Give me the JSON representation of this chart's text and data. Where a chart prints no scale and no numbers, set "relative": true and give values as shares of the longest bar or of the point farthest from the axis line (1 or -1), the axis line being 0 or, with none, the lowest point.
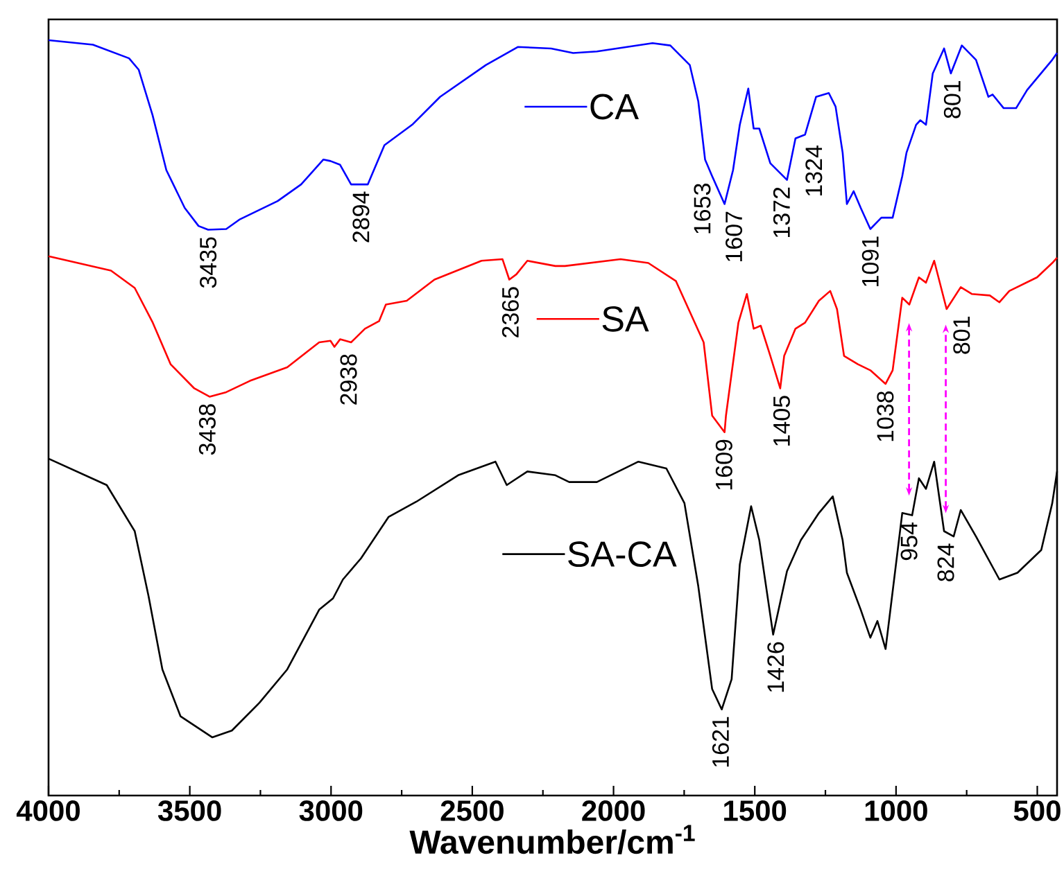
{
  "chart_data": {
    "type": "line",
    "relative": true,
    "xlabel": "Wavenumber/cm$^{-1}$",
    "xlim": [
      4000,
      430
    ],
    "xticks": [
      4000,
      {
        "value": 3750,
        "label": null
      },
      3500,
      {
        "value": 3250,
        "label": null
      },
      3000,
      {
        "value": 2750,
        "label": null
      },
      2500,
      {
        "value": 2250,
        "label": null
      },
      2000,
      {
        "value": 1750,
        "label": null
      },
      1500,
      {
        "value": 1250,
        "label": null
      },
      1000,
      {
        "value": 750,
        "label": null
      },
      500
    ],
    "tick_labels": "x",
    "legend": "center",
    "series": [
      {
        "name": "CA",
        "color": "#0000ff",
        "x": [
          4000,
          3843,
          3715,
          3681,
          3632,
          3583,
          3518,
          3469,
          3435,
          3371,
          3322,
          3189,
          3106,
          3027,
          3002,
          2968,
          2929,
          2904,
          2870,
          2811,
          2713,
          2614,
          2452,
          2339,
          2221,
          2143,
          2059,
          1862,
          1799,
          1730,
          1700,
          1676,
          1651,
          1607,
          1577,
          1553,
          1523,
          1504,
          1484,
          1445,
          1386,
          1356,
          1322,
          1283,
          1238,
          1214,
          1189,
          1174,
          1150,
          1125,
          1091,
          1052,
          1012,
          978,
          963,
          929,
          914,
          894,
          870,
          830,
          806,
          767,
          717,
          673,
          658,
          619,
          575,
          536,
          447,
          430
        ],
        "values": [
          1.0,
          0.994,
          0.976,
          0.961,
          0.901,
          0.828,
          0.778,
          0.754,
          0.749,
          0.75,
          0.763,
          0.787,
          0.809,
          0.842,
          0.84,
          0.835,
          0.809,
          0.809,
          0.809,
          0.861,
          0.888,
          0.925,
          0.967,
          0.991,
          0.989,
          0.983,
          0.985,
          0.996,
          0.993,
          0.967,
          0.919,
          0.842,
          0.82,
          0.783,
          0.828,
          0.888,
          0.936,
          0.883,
          0.883,
          0.837,
          0.815,
          0.87,
          0.875,
          0.925,
          0.93,
          0.912,
          0.851,
          0.783,
          0.8,
          0.778,
          0.75,
          0.765,
          0.765,
          0.82,
          0.851,
          0.888,
          0.894,
          0.888,
          0.956,
          0.989,
          0.956,
          0.993,
          0.974,
          0.925,
          0.928,
          0.91,
          0.91,
          0.934,
          0.974,
          0.983
        ]
      },
      {
        "name": "SA",
        "color": "#ff0000",
        "x": [
          4000,
          3779,
          3695,
          3631,
          3568,
          3484,
          3430,
          3371,
          3287,
          3155,
          3042,
          3002,
          2988,
          2968,
          2929,
          2880,
          2830,
          2806,
          2732,
          2634,
          2467,
          2393,
          2369,
          2344,
          2305,
          2206,
          2172,
          1975,
          1877,
          1779,
          1681,
          1651,
          1607,
          1602,
          1558,
          1528,
          1504,
          1479,
          1445,
          1410,
          1396,
          1356,
          1322,
          1273,
          1233,
          1209,
          1184,
          1135,
          1091,
          1037,
          1012,
          978,
          953,
          919,
          894,
          865,
          821,
          771,
          732,
          668,
          634,
          599,
          501,
          447,
          430
        ],
        "values": [
          0.714,
          0.695,
          0.672,
          0.626,
          0.571,
          0.539,
          0.528,
          0.534,
          0.549,
          0.567,
          0.6,
          0.602,
          0.594,
          0.604,
          0.6,
          0.618,
          0.628,
          0.65,
          0.655,
          0.683,
          0.708,
          0.71,
          0.683,
          0.69,
          0.708,
          0.701,
          0.701,
          0.71,
          0.705,
          0.681,
          0.6,
          0.503,
          0.481,
          0.503,
          0.626,
          0.664,
          0.618,
          0.622,
          0.582,
          0.539,
          0.582,
          0.618,
          0.626,
          0.655,
          0.668,
          0.644,
          0.582,
          0.571,
          0.563,
          0.545,
          0.563,
          0.659,
          0.65,
          0.686,
          0.679,
          0.708,
          0.644,
          0.673,
          0.664,
          0.662,
          0.653,
          0.668,
          0.686,
          0.705,
          0.712
        ]
      },
      {
        "name": "SA-CA",
        "color": "#000000",
        "x": [
          4000,
          3794,
          3695,
          3646,
          3597,
          3533,
          3420,
          3351,
          3253,
          3155,
          3042,
          2993,
          2958,
          2894,
          2796,
          2698,
          2550,
          2418,
          2378,
          2354,
          2305,
          2206,
          2157,
          2059,
          1912,
          1813,
          1749,
          1700,
          1651,
          1617,
          1582,
          1553,
          1513,
          1484,
          1435,
          1386,
          1337,
          1273,
          1224,
          1189,
          1174,
          1125,
          1091,
          1066,
          1037,
          978,
          943,
          919,
          894,
          865,
          830,
          796,
          771,
          717,
          634,
          570,
          486,
          447,
          430
        ],
        "values": [
          0.446,
          0.411,
          0.35,
          0.264,
          0.167,
          0.105,
          0.077,
          0.086,
          0.123,
          0.167,
          0.246,
          0.261,
          0.286,
          0.314,
          0.369,
          0.389,
          0.424,
          0.442,
          0.411,
          0.417,
          0.429,
          0.424,
          0.415,
          0.415,
          0.442,
          0.433,
          0.387,
          0.277,
          0.141,
          0.114,
          0.154,
          0.306,
          0.383,
          0.338,
          0.213,
          0.297,
          0.338,
          0.374,
          0.396,
          0.338,
          0.295,
          0.246,
          0.209,
          0.231,
          0.194,
          0.374,
          0.371,
          0.42,
          0.406,
          0.442,
          0.35,
          0.343,
          0.378,
          0.343,
          0.286,
          0.295,
          0.325,
          0.387,
          0.429
        ]
      }
    ],
    "annotations": [
      {
        "text": "3435",
        "x": 3435,
        "y": 0.749
      },
      {
        "text": "2894",
        "x": 2894,
        "y": 0.809
      },
      {
        "text": "1653",
        "x": 1653,
        "y": 0.82
      },
      {
        "text": "1607",
        "x": 1607,
        "y": 0.783
      },
      {
        "text": "1372",
        "x": 1372,
        "y": 0.815
      },
      {
        "text": "1324",
        "x": 1324,
        "y": 0.87
      },
      {
        "text": "1091",
        "x": 1091,
        "y": 0.75
      },
      {
        "text": "801",
        "x": 801,
        "y": 0.956
      },
      {
        "text": "3438",
        "x": 3438,
        "y": 0.528
      },
      {
        "text": "2938",
        "x": 2938,
        "y": 0.594
      },
      {
        "text": "2365",
        "x": 2365,
        "y": 0.683
      },
      {
        "text": "1609",
        "x": 1609,
        "y": 0.481
      },
      {
        "text": "1405",
        "x": 1405,
        "y": 0.539
      },
      {
        "text": "1038",
        "x": 1038,
        "y": 0.545
      },
      {
        "text": "801",
        "x": 801,
        "y": 0.644
      },
      {
        "text": "1621",
        "x": 1621,
        "y": 0.114
      },
      {
        "text": "1426",
        "x": 1426,
        "y": 0.213
      },
      {
        "text": "954",
        "x": 954,
        "y": 0.371
      },
      {
        "text": "824",
        "x": 824,
        "y": 0.343
      }
    ]
  }
}
